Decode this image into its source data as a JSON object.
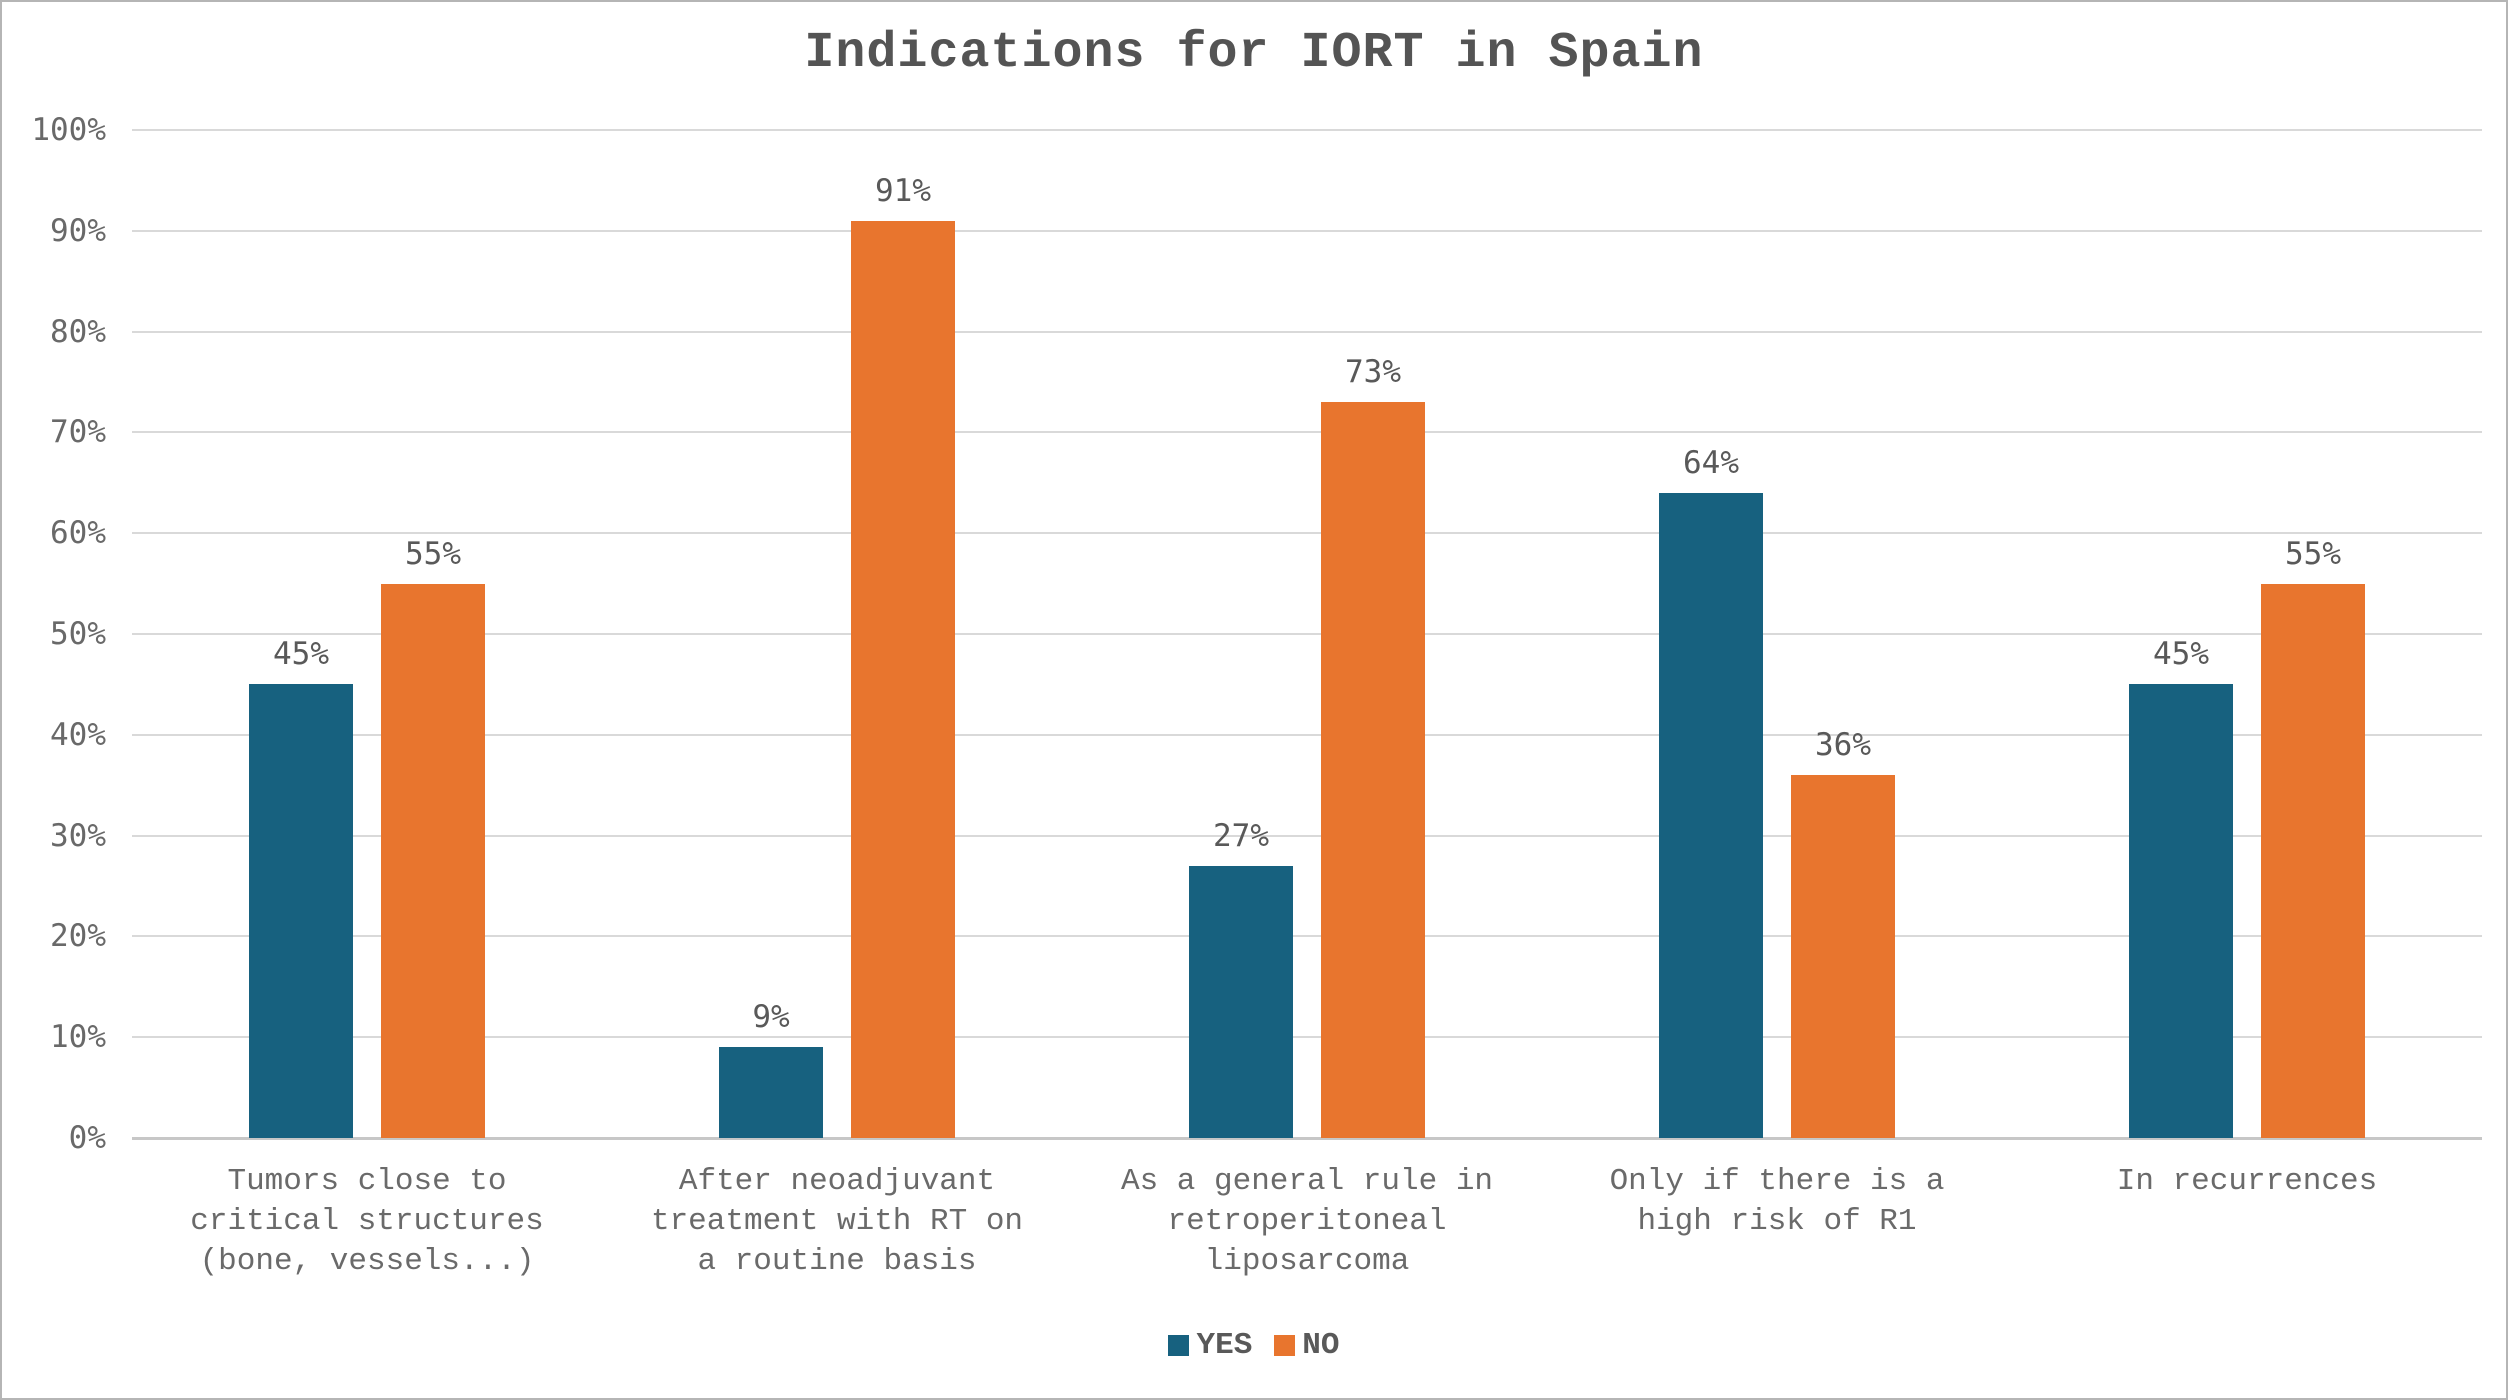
{
  "chart_data": {
    "type": "bar",
    "title": "Indications for IORT in Spain",
    "categories": [
      "Tumors close to\ncritical structures\n(bone, vessels...)",
      "After neoadjuvant\ntreatment with RT on\na routine basis",
      "As a general rule in\nretroperitoneal\nliposarcoma",
      "Only if there is a\nhigh risk of R1",
      "In recurrences"
    ],
    "series": [
      {
        "name": "YES",
        "color": "#17617F",
        "values": [
          45,
          9,
          27,
          64,
          45
        ]
      },
      {
        "name": "NO",
        "color": "#E8752E",
        "values": [
          55,
          91,
          73,
          36,
          55
        ]
      }
    ],
    "value_suffix": "%",
    "ylim": [
      0,
      100
    ],
    "ytick_step": 10,
    "ytick_labels": [
      "0%",
      "10%",
      "20%",
      "30%",
      "40%",
      "50%",
      "60%",
      "70%",
      "80%",
      "90%",
      "100%"
    ],
    "grid": "horizontal",
    "legend_position": "bottom",
    "colors": {
      "grid": "#D9D9D9",
      "axis_baseline": "#C7C7C7",
      "text": "#595959",
      "category_text": "#6A6A6A",
      "frame_border": "#B5B5B5"
    }
  }
}
